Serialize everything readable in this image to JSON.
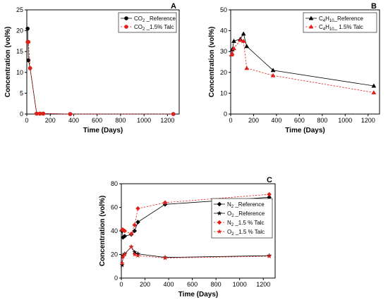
{
  "chart_data": [
    {
      "panel": "A",
      "type": "line",
      "xlabel": "Time (Days)",
      "ylabel": "Concentration (vol%)",
      "xlim": [
        0,
        1300
      ],
      "ylim": [
        0,
        25
      ],
      "xticks": [
        0,
        200,
        400,
        600,
        800,
        1000,
        1200
      ],
      "yticks": [
        0,
        5,
        10,
        15,
        20,
        25
      ],
      "legend": "top-right",
      "series": [
        {
          "name_main": "CO",
          "name_sub": "2",
          "name_rest": " _Reference",
          "color": "#000000",
          "dash": false,
          "marker": "circle",
          "x": [
            7,
            14,
            28,
            84,
            112,
            140,
            370,
            1250
          ],
          "y": [
            20.5,
            12.9,
            11.0,
            0.1,
            0.1,
            0.1,
            0.0,
            0.0
          ]
        },
        {
          "name_main": "CO",
          "name_sub": "2",
          "name_rest": " _1.5% Talc",
          "color": "#e0201b",
          "dash": true,
          "marker": "circle",
          "x": [
            7,
            14,
            28,
            84,
            112,
            140,
            370,
            1250
          ],
          "y": [
            17.3,
            17.3,
            11.0,
            0.1,
            0.1,
            0.1,
            0.0,
            0.0
          ]
        }
      ]
    },
    {
      "panel": "B",
      "type": "line",
      "xlabel": "Time (Days)",
      "ylabel": "Concentration (vol%)",
      "xlim": [
        0,
        1300
      ],
      "ylim": [
        0,
        50
      ],
      "xticks": [
        0,
        200,
        400,
        600,
        800,
        1000,
        1200
      ],
      "yticks": [
        0,
        10,
        20,
        30,
        40,
        50
      ],
      "legend": "top-right",
      "series": [
        {
          "name_main": "C",
          "name_sub": "4",
          "name_main2": "H",
          "name_sub2": "10",
          "name_rest": "_Reference",
          "color": "#000000",
          "dash": false,
          "marker": "triangle",
          "x": [
            7,
            14,
            28,
            84,
            112,
            140,
            370,
            1250
          ],
          "y": [
            28.5,
            31.0,
            35.0,
            36.0,
            38.5,
            32.5,
            21.0,
            13.5
          ]
        },
        {
          "name_main": "C",
          "name_sub": "4",
          "name_main2": "H",
          "name_sub2": "10",
          "name_rest": "_ 1.5% Talc",
          "color": "#e0201b",
          "dash": true,
          "marker": "triangle",
          "x": [
            7,
            14,
            28,
            84,
            112,
            140,
            370,
            1250
          ],
          "y": [
            28.5,
            29.0,
            31.5,
            35.5,
            35.0,
            22.0,
            18.5,
            10.3
          ]
        }
      ]
    },
    {
      "panel": "C",
      "type": "line",
      "xlabel": "Time (Days)",
      "ylabel": "Concentration (vol%)",
      "xlim": [
        0,
        1300
      ],
      "ylim": [
        0,
        80
      ],
      "xticks": [
        0,
        200,
        400,
        600,
        800,
        1000,
        1200
      ],
      "yticks": [
        0,
        20,
        40,
        60,
        80
      ],
      "legend": "right",
      "series": [
        {
          "name_main": "N",
          "name_sub": "2",
          "name_rest": " _Reference",
          "color": "#000000",
          "dash": false,
          "marker": "diamond",
          "x": [
            7,
            14,
            28,
            84,
            112,
            140,
            370,
            1250
          ],
          "y": [
            40.0,
            34.5,
            35.5,
            37.0,
            40.0,
            47.5,
            62.5,
            68.5
          ]
        },
        {
          "name_main": "O",
          "name_sub": "2",
          "name_rest": " _Reference",
          "color": "#000000",
          "dash": false,
          "marker": "star",
          "x": [
            7,
            14,
            28,
            84,
            112,
            140,
            370,
            1250
          ],
          "y": [
            11.0,
            19.0,
            20.5,
            26.5,
            22.0,
            20.5,
            17.5,
            19.0
          ]
        },
        {
          "name_main": "N",
          "name_sub": "2",
          "name_rest": " _1.5 % Talc",
          "color": "#e0201b",
          "dash": true,
          "marker": "diamond",
          "x": [
            7,
            14,
            28,
            84,
            112,
            140,
            370,
            1250
          ],
          "y": [
            41.0,
            41.0,
            40.0,
            37.5,
            45.0,
            59.0,
            64.0,
            71.0
          ]
        },
        {
          "name_main": "O",
          "name_sub": "2",
          "name_rest": " _1.5 % Talc",
          "color": "#e0201b",
          "dash": true,
          "marker": "star",
          "x": [
            7,
            14,
            28,
            84,
            112,
            140,
            370,
            1250
          ],
          "y": [
            12.5,
            18.0,
            20.0,
            26.5,
            20.0,
            19.0,
            17.0,
            18.5
          ]
        }
      ]
    }
  ]
}
